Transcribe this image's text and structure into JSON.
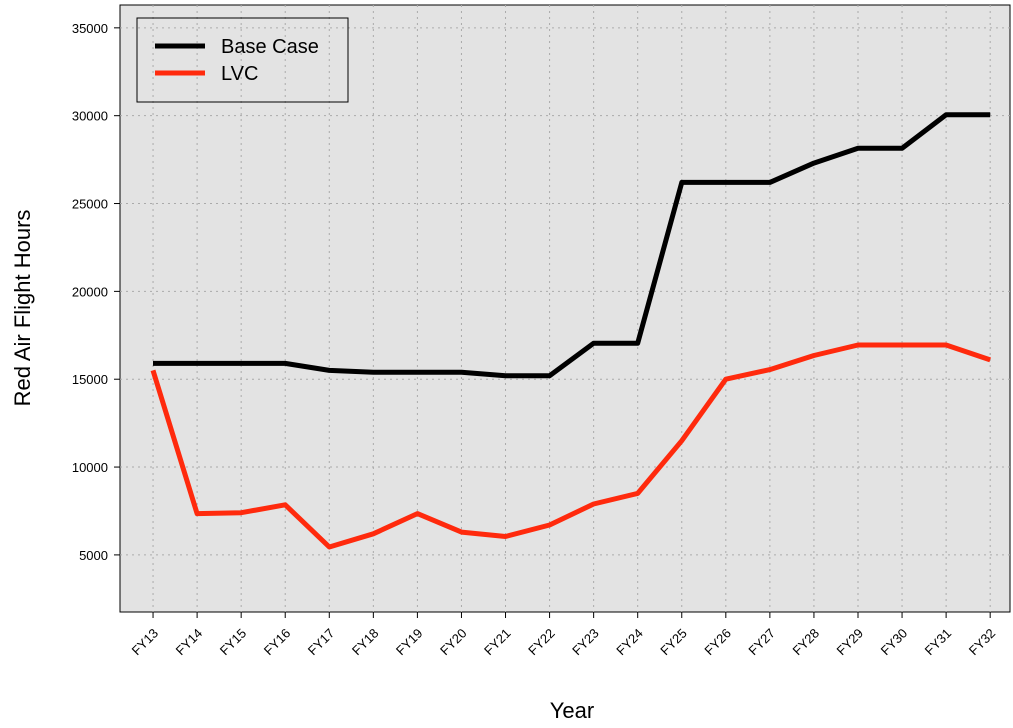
{
  "chart_data": {
    "type": "line",
    "x_label": "Year",
    "y_label": "Red Air Flight Hours",
    "categories": [
      "FY13",
      "FY14",
      "FY15",
      "FY16",
      "FY17",
      "FY18",
      "FY19",
      "FY20",
      "FY21",
      "FY22",
      "FY23",
      "FY24",
      "FY25",
      "FY26",
      "FY27",
      "FY28",
      "FY29",
      "FY30",
      "FY31",
      "FY32"
    ],
    "series": [
      {
        "name": "Base Case",
        "color": "#000000",
        "values": [
          15900,
          15900,
          15900,
          15900,
          15500,
          15400,
          15400,
          15400,
          15200,
          15200,
          17050,
          17050,
          26200,
          26200,
          26200,
          27300,
          28150,
          28150,
          30050,
          30050
        ]
      },
      {
        "name": "LVC",
        "color": "#ff2a0d",
        "values": [
          15500,
          7350,
          7400,
          7850,
          5450,
          6200,
          7350,
          6300,
          6050,
          6700,
          7900,
          8500,
          11500,
          15000,
          15550,
          16350,
          16950,
          16950,
          16950,
          16100
        ]
      }
    ],
    "ylim": [
      1750,
      36300
    ],
    "yticks": [
      5000,
      10000,
      15000,
      20000,
      25000,
      30000,
      35000
    ],
    "grid": true,
    "legend": "top-left"
  }
}
